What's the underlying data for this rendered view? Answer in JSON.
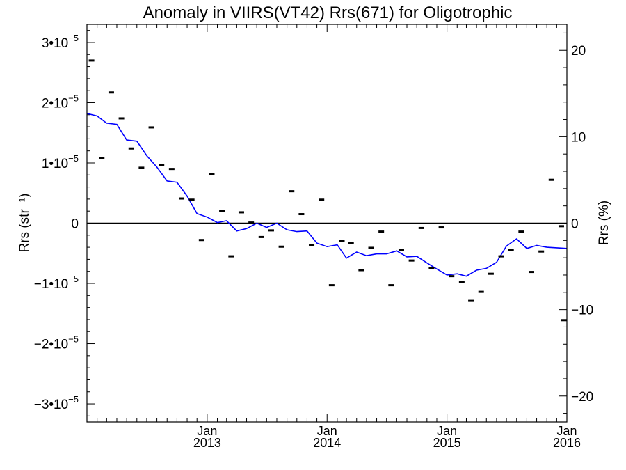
{
  "chart_data": {
    "type": "scatter",
    "title": "Anomaly in VIIRS(VT42) Rrs(671) for Oligotrophic",
    "ylabel_left": "Rrs (str⁻¹)",
    "ylabel_right": "Rrs (%)",
    "xlim": [
      "2012-01-01",
      "2016-01-01"
    ],
    "ylim_left": [
      -3.3e-05,
      3.3e-05
    ],
    "ylim_right": [
      -23,
      23
    ],
    "x_ticks": [
      {
        "date": "2013-01-01",
        "month": "Jan",
        "year": "2013"
      },
      {
        "date": "2014-01-01",
        "month": "Jan",
        "year": "2014"
      },
      {
        "date": "2015-01-01",
        "month": "Jan",
        "year": "2015"
      },
      {
        "date": "2016-01-01",
        "month": "Jan",
        "year": "2016"
      }
    ],
    "y_ticks_left": [
      {
        "value": 3e-05,
        "mantissa": "3",
        "exp": "−5"
      },
      {
        "value": 2e-05,
        "mantissa": "2",
        "exp": "−5"
      },
      {
        "value": 1e-05,
        "mantissa": "1",
        "exp": "−5"
      },
      {
        "value": 0,
        "mantissa": "0",
        "exp": ""
      },
      {
        "value": -1e-05,
        "mantissa": "−1",
        "exp": "−5"
      },
      {
        "value": -2e-05,
        "mantissa": "−2",
        "exp": "−5"
      },
      {
        "value": -3e-05,
        "mantissa": "−3",
        "exp": "−5"
      }
    ],
    "y_ticks_right": [
      {
        "value": 20,
        "label": "20"
      },
      {
        "value": 10,
        "label": "10"
      },
      {
        "value": 0,
        "label": "0"
      },
      {
        "value": -10,
        "label": "−10"
      },
      {
        "value": -20,
        "label": "−20"
      }
    ],
    "zero_line": 0,
    "colors": {
      "points": "#000000",
      "running_mean": "#0000ff",
      "axes": "#000000"
    },
    "series": [
      {
        "style": "points",
        "color": "#000000",
        "points": [
          {
            "x": "2012-01-15",
            "y": 2.7e-05
          },
          {
            "x": "2012-02-15",
            "y": 1.08e-05
          },
          {
            "x": "2012-03-15",
            "y": 2.17e-05
          },
          {
            "x": "2012-04-15",
            "y": 1.74e-05
          },
          {
            "x": "2012-05-15",
            "y": 1.24e-05
          },
          {
            "x": "2012-06-15",
            "y": 9.2e-06
          },
          {
            "x": "2012-07-15",
            "y": 1.59e-05
          },
          {
            "x": "2012-08-15",
            "y": 9.6e-06
          },
          {
            "x": "2012-09-15",
            "y": 9e-06
          },
          {
            "x": "2012-10-15",
            "y": 4.1e-06
          },
          {
            "x": "2012-11-15",
            "y": 3.9e-06
          },
          {
            "x": "2012-12-15",
            "y": -2.8e-06
          },
          {
            "x": "2013-01-15",
            "y": 8.1e-06
          },
          {
            "x": "2013-02-15",
            "y": 2e-06
          },
          {
            "x": "2013-03-15",
            "y": -5.5e-06
          },
          {
            "x": "2013-04-15",
            "y": 1.8e-06
          },
          {
            "x": "2013-05-15",
            "y": 1e-07
          },
          {
            "x": "2013-06-15",
            "y": -2.3e-06
          },
          {
            "x": "2013-07-15",
            "y": -1.2e-06
          },
          {
            "x": "2013-08-15",
            "y": -3.9e-06
          },
          {
            "x": "2013-09-15",
            "y": 5.3e-06
          },
          {
            "x": "2013-10-15",
            "y": 1.5e-06
          },
          {
            "x": "2013-11-15",
            "y": -3.6e-06
          },
          {
            "x": "2013-12-15",
            "y": 3.9e-06
          },
          {
            "x": "2014-01-15",
            "y": -1.03e-05
          },
          {
            "x": "2014-02-15",
            "y": -3e-06
          },
          {
            "x": "2014-03-15",
            "y": -3.3e-06
          },
          {
            "x": "2014-04-15",
            "y": -7.8e-06
          },
          {
            "x": "2014-05-15",
            "y": -4.1e-06
          },
          {
            "x": "2014-06-15",
            "y": -1.4e-06
          },
          {
            "x": "2014-07-15",
            "y": -1.03e-05
          },
          {
            "x": "2014-08-15",
            "y": -4.4e-06
          },
          {
            "x": "2014-09-15",
            "y": -6.2e-06
          },
          {
            "x": "2014-10-15",
            "y": -8e-07
          },
          {
            "x": "2014-11-15",
            "y": -7.5e-06
          },
          {
            "x": "2014-12-15",
            "y": -7e-07
          },
          {
            "x": "2015-01-15",
            "y": -8.8e-06
          },
          {
            "x": "2015-02-15",
            "y": -9.8e-06
          },
          {
            "x": "2015-03-15",
            "y": -1.29e-05
          },
          {
            "x": "2015-04-15",
            "y": -1.14e-05
          },
          {
            "x": "2015-05-15",
            "y": -8.4e-06
          },
          {
            "x": "2015-06-15",
            "y": -5.5e-06
          },
          {
            "x": "2015-07-15",
            "y": -4.4e-06
          },
          {
            "x": "2015-08-15",
            "y": -1.4e-06
          },
          {
            "x": "2015-09-15",
            "y": -8.1e-06
          },
          {
            "x": "2015-10-15",
            "y": -4.7e-06
          },
          {
            "x": "2015-11-15",
            "y": 7.2e-06
          },
          {
            "x": "2015-12-15",
            "y": -5e-07
          },
          {
            "x": "2016-01-01",
            "y": -1.61e-05
          }
        ]
      },
      {
        "style": "line",
        "color": "#0000ff",
        "points": [
          {
            "x": "2012-01-01",
            "y": 1.82e-05
          },
          {
            "x": "2012-02-01",
            "y": 1.78e-05
          },
          {
            "x": "2012-03-01",
            "y": 1.66e-05
          },
          {
            "x": "2012-04-01",
            "y": 1.64e-05
          },
          {
            "x": "2012-05-01",
            "y": 1.38e-05
          },
          {
            "x": "2012-06-01",
            "y": 1.36e-05
          },
          {
            "x": "2012-07-01",
            "y": 1.12e-05
          },
          {
            "x": "2012-08-01",
            "y": 9.3e-06
          },
          {
            "x": "2012-09-01",
            "y": 7e-06
          },
          {
            "x": "2012-10-01",
            "y": 6.8e-06
          },
          {
            "x": "2012-11-01",
            "y": 4.5e-06
          },
          {
            "x": "2012-12-01",
            "y": 1.6e-06
          },
          {
            "x": "2013-01-01",
            "y": 1e-06
          },
          {
            "x": "2013-02-01",
            "y": 1e-07
          },
          {
            "x": "2013-03-01",
            "y": 4e-07
          },
          {
            "x": "2013-04-01",
            "y": -1.3e-06
          },
          {
            "x": "2013-05-01",
            "y": -9e-07
          },
          {
            "x": "2013-06-01",
            "y": 0.0
          },
          {
            "x": "2013-07-01",
            "y": -7e-07
          },
          {
            "x": "2013-08-01",
            "y": 0.0
          },
          {
            "x": "2013-09-01",
            "y": -1.1e-06
          },
          {
            "x": "2013-10-01",
            "y": -1.4e-06
          },
          {
            "x": "2013-11-01",
            "y": -1.3e-06
          },
          {
            "x": "2013-12-01",
            "y": -3.3e-06
          },
          {
            "x": "2014-01-01",
            "y": -3.9e-06
          },
          {
            "x": "2014-02-01",
            "y": -3.6e-06
          },
          {
            "x": "2014-03-01",
            "y": -5.8e-06
          },
          {
            "x": "2014-04-01",
            "y": -4.8e-06
          },
          {
            "x": "2014-05-01",
            "y": -5.4e-06
          },
          {
            "x": "2014-06-01",
            "y": -5.1e-06
          },
          {
            "x": "2014-07-01",
            "y": -5.1e-06
          },
          {
            "x": "2014-08-01",
            "y": -4.6e-06
          },
          {
            "x": "2014-09-01",
            "y": -5.6e-06
          },
          {
            "x": "2014-10-01",
            "y": -5.5e-06
          },
          {
            "x": "2014-11-01",
            "y": -6.6e-06
          },
          {
            "x": "2014-12-01",
            "y": -7.6e-06
          },
          {
            "x": "2015-01-01",
            "y": -8.6e-06
          },
          {
            "x": "2015-02-01",
            "y": -8.4e-06
          },
          {
            "x": "2015-03-01",
            "y": -8.8e-06
          },
          {
            "x": "2015-04-01",
            "y": -7.8e-06
          },
          {
            "x": "2015-05-01",
            "y": -7.5e-06
          },
          {
            "x": "2015-06-01",
            "y": -6.5e-06
          },
          {
            "x": "2015-07-01",
            "y": -3.8e-06
          },
          {
            "x": "2015-08-01",
            "y": -2.6e-06
          },
          {
            "x": "2015-09-01",
            "y": -4.2e-06
          },
          {
            "x": "2015-10-01",
            "y": -3.7e-06
          },
          {
            "x": "2015-11-01",
            "y": -4e-06
          },
          {
            "x": "2016-01-01",
            "y": -4.2e-06
          }
        ]
      }
    ]
  }
}
